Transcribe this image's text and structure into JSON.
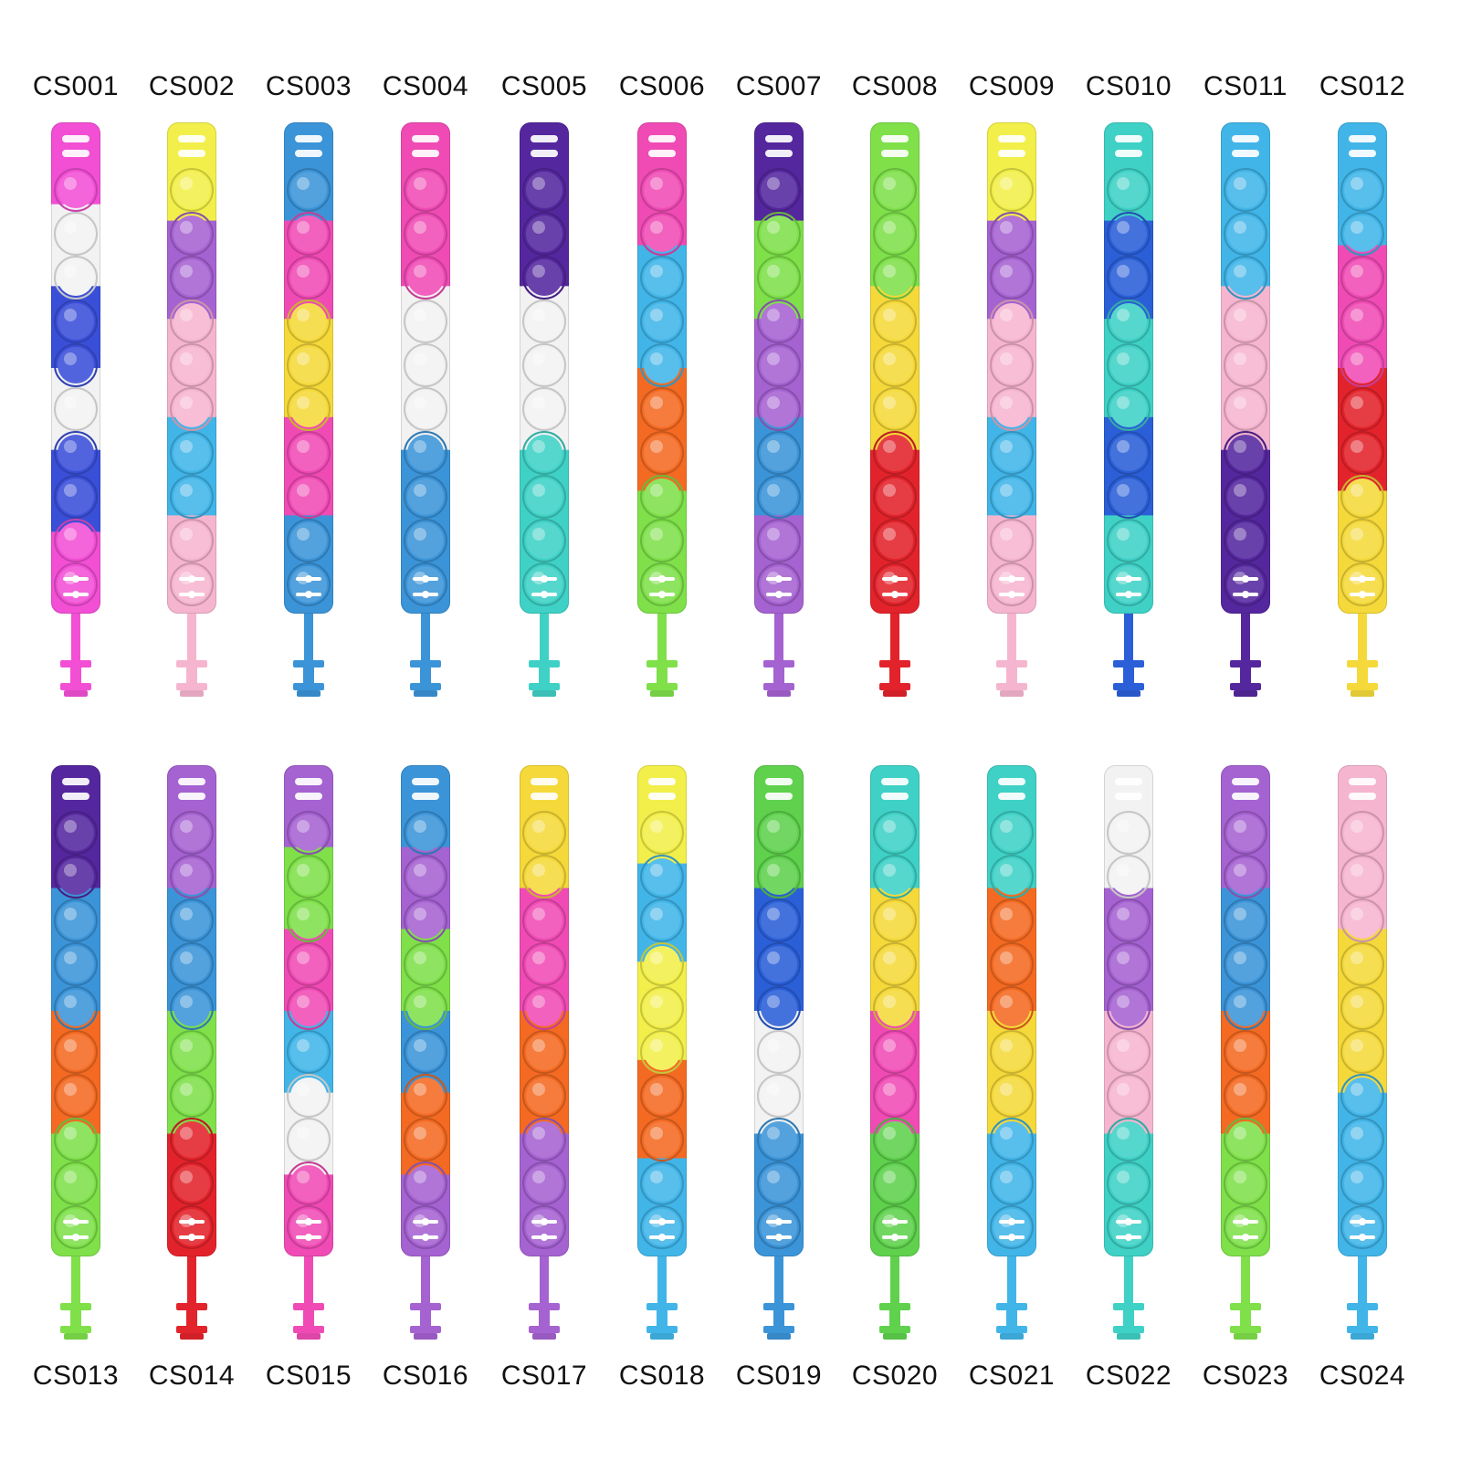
{
  "colors": {
    "pink": "#f24fd5",
    "white": "#f2f2f2",
    "blue": "#3a4fd8",
    "yellow": "#f2ef4a",
    "purple": "#a562d1",
    "lightpink": "#f6b5cf",
    "skyblue": "#41b5e8",
    "midblue": "#3b94d8",
    "magenta": "#f04bb5",
    "gold": "#f5d93a",
    "violet": "#55279e",
    "teal": "#3fd1c6",
    "orange": "#f46a22",
    "lime": "#7fe04a",
    "red": "#e3232b",
    "royal": "#2b5fd8",
    "green": "#5fd14d"
  },
  "products": [
    {
      "code": "CS001",
      "bands": [
        "pink",
        "white",
        "blue",
        "white",
        "blue",
        "pink"
      ],
      "tail": "pink"
    },
    {
      "code": "CS002",
      "bands": [
        "yellow",
        "purple",
        "lightpink",
        "skyblue",
        "lightpink"
      ],
      "tail": "lightpink"
    },
    {
      "code": "CS003",
      "bands": [
        "midblue",
        "magenta",
        "gold",
        "magenta",
        "midblue"
      ],
      "tail": "midblue"
    },
    {
      "code": "CS004",
      "bands": [
        "magenta",
        "white",
        "midblue"
      ],
      "tail": "midblue"
    },
    {
      "code": "CS005",
      "bands": [
        "violet",
        "white",
        "teal"
      ],
      "tail": "teal"
    },
    {
      "code": "CS006",
      "bands": [
        "magenta",
        "skyblue",
        "orange",
        "lime"
      ],
      "tail": "lime"
    },
    {
      "code": "CS007",
      "bands": [
        "violet",
        "lime",
        "purple",
        "midblue",
        "purple"
      ],
      "tail": "purple"
    },
    {
      "code": "CS008",
      "bands": [
        "lime",
        "gold",
        "red"
      ],
      "tail": "red"
    },
    {
      "code": "CS009",
      "bands": [
        "yellow",
        "purple",
        "lightpink",
        "skyblue",
        "lightpink"
      ],
      "tail": "lightpink"
    },
    {
      "code": "CS010",
      "bands": [
        "teal",
        "royal",
        "teal",
        "royal",
        "teal"
      ],
      "tail": "royal"
    },
    {
      "code": "CS011",
      "bands": [
        "skyblue",
        "lightpink",
        "violet"
      ],
      "tail": "violet"
    },
    {
      "code": "CS012",
      "bands": [
        "skyblue",
        "magenta",
        "red",
        "gold"
      ],
      "tail": "gold"
    },
    {
      "code": "CS013",
      "bands": [
        "violet",
        "midblue",
        "orange",
        "lime"
      ],
      "tail": "lime"
    },
    {
      "code": "CS014",
      "bands": [
        "purple",
        "midblue",
        "lime",
        "red"
      ],
      "tail": "red"
    },
    {
      "code": "CS015",
      "bands": [
        "purple",
        "lime",
        "magenta",
        "skyblue",
        "white",
        "magenta"
      ],
      "tail": "magenta"
    },
    {
      "code": "CS016",
      "bands": [
        "midblue",
        "purple",
        "lime",
        "midblue",
        "orange",
        "purple"
      ],
      "tail": "purple"
    },
    {
      "code": "CS017",
      "bands": [
        "gold",
        "magenta",
        "orange",
        "purple"
      ],
      "tail": "purple"
    },
    {
      "code": "CS018",
      "bands": [
        "yellow",
        "skyblue",
        "yellow",
        "orange",
        "skyblue"
      ],
      "tail": "skyblue"
    },
    {
      "code": "CS019",
      "bands": [
        "green",
        "royal",
        "white",
        "midblue"
      ],
      "tail": "midblue"
    },
    {
      "code": "CS020",
      "bands": [
        "teal",
        "gold",
        "magenta",
        "green"
      ],
      "tail": "green"
    },
    {
      "code": "CS021",
      "bands": [
        "teal",
        "orange",
        "gold",
        "skyblue"
      ],
      "tail": "skyblue"
    },
    {
      "code": "CS022",
      "bands": [
        "white",
        "purple",
        "lightpink",
        "teal"
      ],
      "tail": "teal"
    },
    {
      "code": "CS023",
      "bands": [
        "purple",
        "midblue",
        "orange",
        "lime"
      ],
      "tail": "lime"
    },
    {
      "code": "CS024",
      "bands": [
        "lightpink",
        "gold",
        "skyblue"
      ],
      "tail": "skyblue"
    }
  ]
}
